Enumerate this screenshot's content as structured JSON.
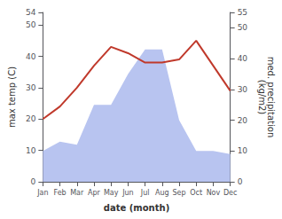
{
  "chart_data": {
    "type": "line",
    "xlabel": "date (month)",
    "ylabel": "max temp (C)",
    "y2label": "med. precipitation\n(kg/m2)",
    "categories": [
      "Jan",
      "Feb",
      "Mar",
      "Apr",
      "May",
      "Jun",
      "Jul",
      "Aug",
      "Sep",
      "Oct",
      "Nov",
      "Dec"
    ],
    "series": [
      {
        "type": "area",
        "axis": "y2",
        "color": "#b8c4f0",
        "values": [
          10,
          13,
          12,
          25,
          25,
          35,
          43,
          43,
          20,
          10,
          10,
          9
        ]
      },
      {
        "type": "line",
        "color": "#c0392b",
        "values": [
          20,
          24,
          30,
          37,
          43,
          41,
          38,
          38,
          39,
          45,
          37,
          29
        ]
      }
    ],
    "ylim": [
      0,
      54
    ],
    "yticks": [
      0,
      10,
      20,
      30,
      40,
      50
    ],
    "y2lim": [
      0,
      55
    ],
    "y2ticks": [
      0,
      10,
      20,
      30,
      40,
      50
    ],
    "grid": false
  }
}
